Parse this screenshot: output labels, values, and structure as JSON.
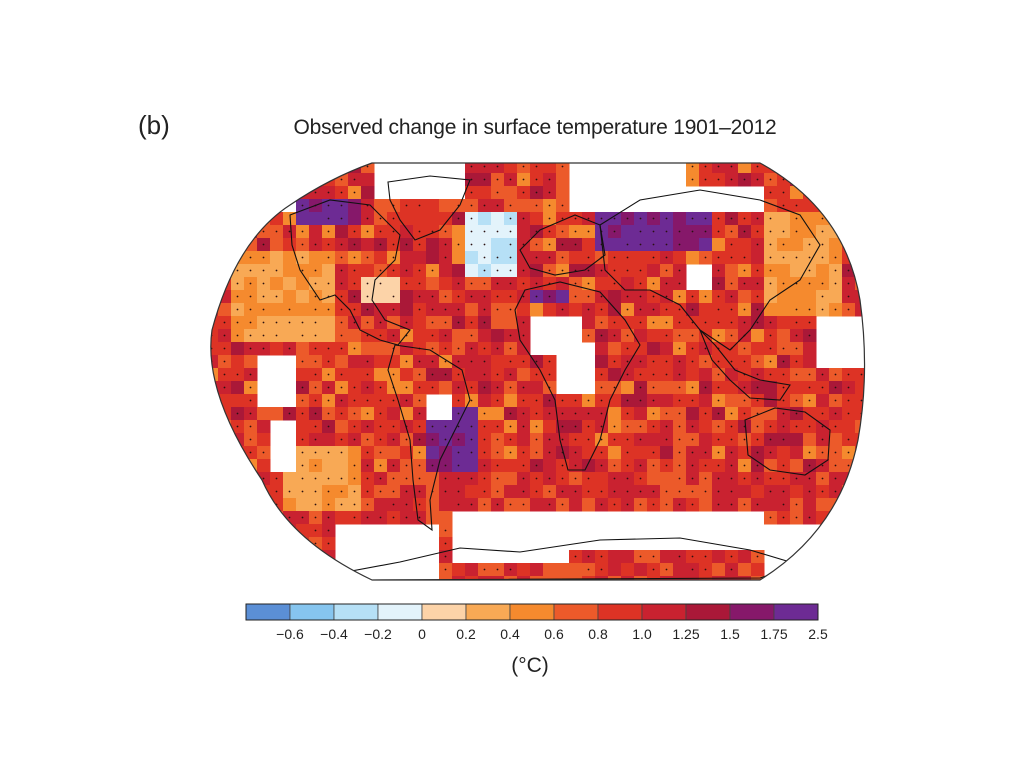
{
  "panel_label": "(b)",
  "title": "Observed change in surface temperature 1901–2012",
  "colorbar": {
    "unit": "(°C)",
    "ticks": [
      "−0.6",
      "−0.4",
      "−0.2",
      "0",
      "0.2",
      "0.4",
      "0.6",
      "0.8",
      "1.0",
      "1.25",
      "1.5",
      "1.75",
      "2.5"
    ],
    "colors": [
      "#5b8fd6",
      "#86c5ef",
      "#b6e0f6",
      "#e3f3fb",
      "#fcd3a8",
      "#f8a955",
      "#f58a2e",
      "#ec5a2a",
      "#dd3325",
      "#c92230",
      "#aa1838",
      "#86186a",
      "#6d2b94"
    ]
  },
  "colors": {
    "land_outline": "#111111",
    "no_data": "#ffffff",
    "ocean_base": "#e03a26"
  }
}
